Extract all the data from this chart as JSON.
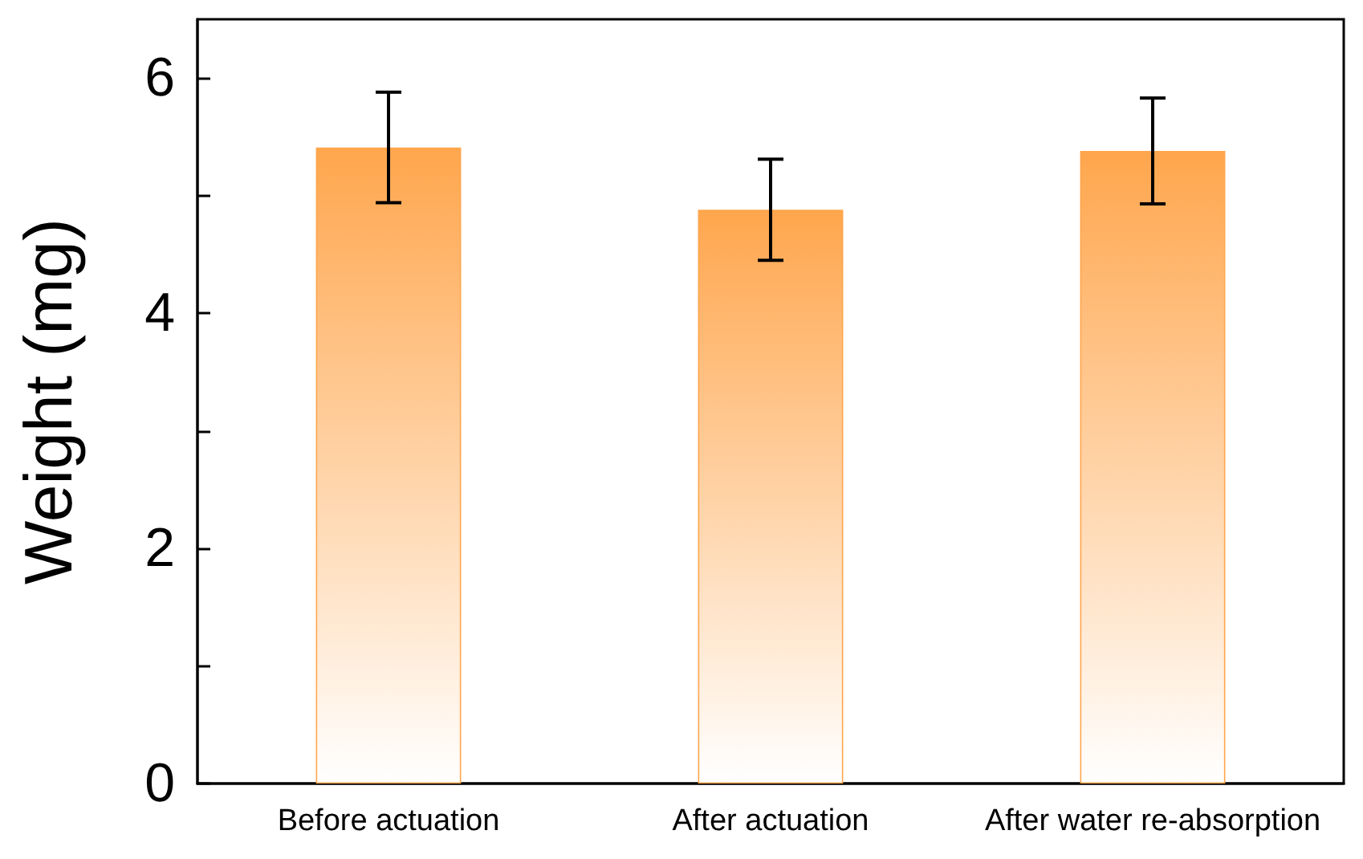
{
  "chart_data": {
    "type": "bar",
    "ylabel": "Weight (mg)",
    "categories": [
      "Before actuation",
      "After actuation",
      "After water re-absorption"
    ],
    "values": [
      5.41,
      4.88,
      5.38
    ],
    "errors": [
      0.47,
      0.43,
      0.45
    ],
    "color": "#ffa64d",
    "ylim": [
      0,
      6.5
    ],
    "yticks": [
      0,
      {
        "value": 1,
        "label": null
      },
      2,
      {
        "value": 3,
        "label": null
      },
      4,
      {
        "value": 5,
        "label": null
      },
      6
    ],
    "grid": false
  }
}
